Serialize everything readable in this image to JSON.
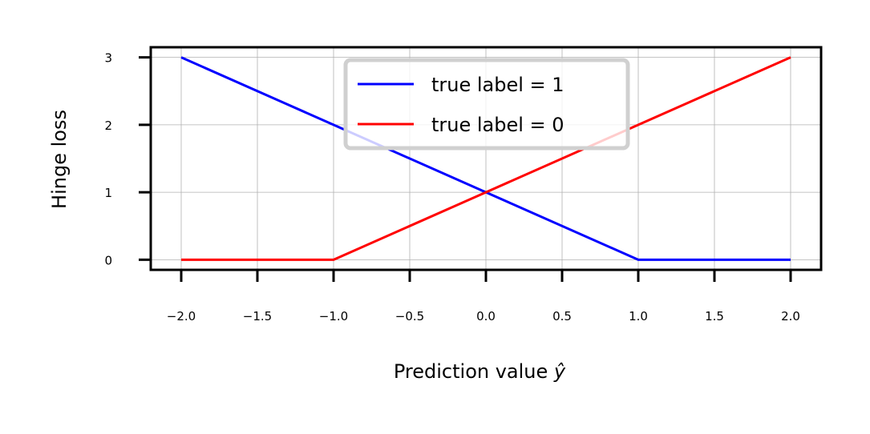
{
  "chart_data": {
    "type": "line",
    "xlabel": "Prediction value",
    "xlabel_symbol": "ŷ",
    "ylabel": "Hinge loss",
    "xlim": [
      -2.2,
      2.2
    ],
    "ylim": [
      -0.15,
      3.15
    ],
    "x_ticks": [
      -2.0,
      -1.5,
      -1.0,
      -0.5,
      0.0,
      0.5,
      1.0,
      1.5,
      2.0
    ],
    "x_tick_labels": [
      "−2.0",
      "−1.5",
      "−1.0",
      "−0.5",
      "0.0",
      "0.5",
      "1.0",
      "1.5",
      "2.0"
    ],
    "y_ticks": [
      0,
      1,
      2,
      3
    ],
    "y_tick_labels": [
      "0",
      "1",
      "2",
      "3"
    ],
    "grid": true,
    "legend_position": "upper-center",
    "series": [
      {
        "name": "true label = 1",
        "color": "#0000ff",
        "x": [
          -2.0,
          -1.0,
          0.0,
          1.0,
          2.0
        ],
        "y": [
          3,
          2,
          1,
          0,
          0
        ]
      },
      {
        "name": "true label = 0",
        "color": "#ff0000",
        "x": [
          -2.0,
          -1.0,
          0.0,
          1.0,
          2.0
        ],
        "y": [
          0,
          0,
          1,
          2,
          3
        ]
      }
    ]
  }
}
